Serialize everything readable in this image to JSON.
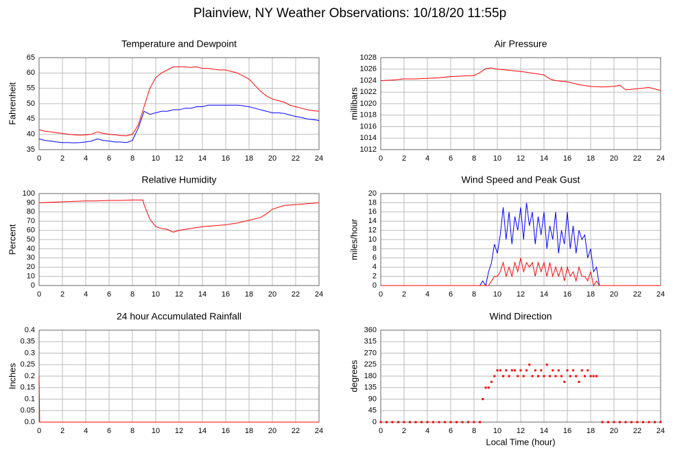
{
  "title": "Plainview, NY Weather Observations: 10/18/20 11:55p",
  "chart_data": [
    {
      "type": "line",
      "title": "Temperature and Dewpoint",
      "y_label": "Fahrenheit",
      "xlim": [
        0,
        24
      ],
      "xticks": [
        0,
        2,
        4,
        6,
        8,
        10,
        12,
        14,
        16,
        18,
        20,
        22,
        24
      ],
      "ylim": [
        35,
        65
      ],
      "yticks": [
        35,
        40,
        45,
        50,
        55,
        60,
        65
      ],
      "grid": true,
      "x": [
        0,
        0.5,
        1,
        1.5,
        2,
        2.5,
        3,
        3.5,
        4,
        4.5,
        5,
        5.5,
        6,
        6.5,
        7,
        7.5,
        8,
        8.5,
        9,
        9.5,
        10,
        10.5,
        11,
        11.5,
        12,
        12.5,
        13,
        13.5,
        14,
        14.5,
        15,
        15.5,
        16,
        16.5,
        17,
        17.5,
        18,
        18.5,
        19,
        19.5,
        20,
        20.5,
        21,
        21.5,
        22,
        22.5,
        23,
        23.5,
        24
      ],
      "series": [
        {
          "color": "#ff0000",
          "values": [
            41.5,
            41,
            40.8,
            40.5,
            40.3,
            40,
            39.8,
            39.7,
            39.8,
            40,
            40.8,
            40.3,
            40,
            39.8,
            39.6,
            39.5,
            40,
            43,
            49,
            55,
            58.5,
            60,
            61,
            62,
            62,
            62,
            61.8,
            62,
            61.5,
            61.5,
            61.2,
            61,
            61,
            60.5,
            60,
            59,
            58,
            56,
            54,
            52.5,
            51.5,
            51,
            50.5,
            49.5,
            49,
            48.5,
            48,
            47.7,
            47.5
          ]
        },
        {
          "color": "#0000ff",
          "values": [
            38.5,
            38,
            37.8,
            37.5,
            37.3,
            37.3,
            37.2,
            37.3,
            37.5,
            37.8,
            38.5,
            38,
            37.8,
            37.5,
            37.5,
            37.3,
            38,
            42,
            47.5,
            46.5,
            47,
            47.5,
            47.5,
            48,
            48,
            48.5,
            48.5,
            49,
            49,
            49.5,
            49.5,
            49.5,
            49.5,
            49.5,
            49.5,
            49.3,
            49,
            48.5,
            48,
            47.5,
            47,
            47,
            46.8,
            46.3,
            45.8,
            45.5,
            45,
            44.8,
            44.5
          ]
        }
      ]
    },
    {
      "type": "line",
      "title": "Air Pressure",
      "y_label": "millibars",
      "xlim": [
        0,
        24
      ],
      "xticks": [
        0,
        2,
        4,
        6,
        8,
        10,
        12,
        14,
        16,
        18,
        20,
        22,
        24
      ],
      "ylim": [
        1012,
        1028
      ],
      "yticks": [
        1012,
        1014,
        1016,
        1018,
        1020,
        1022,
        1024,
        1026,
        1028
      ],
      "grid": true,
      "x": [
        0,
        1,
        2,
        3,
        4,
        5,
        6,
        7,
        8,
        8.5,
        9,
        9.5,
        10,
        11,
        12,
        13,
        14,
        14.5,
        15,
        16,
        17,
        18,
        19,
        20,
        20.5,
        21,
        22,
        23,
        24
      ],
      "series": [
        {
          "color": "#ff0000",
          "values": [
            1024,
            1024.1,
            1024.3,
            1024.3,
            1024.4,
            1024.5,
            1024.7,
            1024.8,
            1024.9,
            1025.4,
            1026.1,
            1026.2,
            1026,
            1025.8,
            1025.6,
            1025.3,
            1025,
            1024.3,
            1024,
            1023.8,
            1023.3,
            1023,
            1022.9,
            1023,
            1023.2,
            1022.4,
            1022.6,
            1022.8,
            1022.3
          ]
        }
      ]
    },
    {
      "type": "line",
      "title": "Relative Humidity",
      "y_label": "Percent",
      "xlim": [
        0,
        24
      ],
      "xticks": [
        0,
        2,
        4,
        6,
        8,
        10,
        12,
        14,
        16,
        18,
        20,
        22,
        24
      ],
      "ylim": [
        0,
        100
      ],
      "yticks": [
        0,
        10,
        20,
        30,
        40,
        50,
        60,
        70,
        80,
        90,
        100
      ],
      "grid": true,
      "x": [
        0,
        1,
        2,
        3,
        4,
        5,
        6,
        7,
        8,
        8.9,
        9,
        9.5,
        10,
        10.5,
        11,
        11.5,
        12,
        13,
        14,
        15,
        16,
        17,
        18,
        19,
        19.5,
        20,
        21,
        22,
        23,
        24
      ],
      "series": [
        {
          "color": "#ff0000",
          "values": [
            90,
            90.5,
            91,
            91.5,
            92,
            92,
            92.5,
            92.5,
            93,
            93,
            88,
            72,
            64,
            62,
            61,
            58,
            60,
            62,
            64,
            65,
            66,
            68,
            71,
            74,
            78,
            83,
            87,
            88,
            89,
            90
          ]
        }
      ]
    },
    {
      "type": "line",
      "title": "Wind Speed and Peak Gust",
      "y_label": "miles/hour",
      "xlim": [
        0,
        24
      ],
      "xticks": [
        0,
        2,
        4,
        6,
        8,
        10,
        12,
        14,
        16,
        18,
        20,
        22,
        24
      ],
      "ylim": [
        0,
        20
      ],
      "yticks": [
        0,
        2,
        4,
        6,
        8,
        10,
        12,
        14,
        16,
        18,
        20
      ],
      "grid": true,
      "x": [
        0,
        8.5,
        8.75,
        9,
        9.25,
        9.5,
        9.75,
        10,
        10.25,
        10.5,
        10.75,
        11,
        11.25,
        11.5,
        11.75,
        12,
        12.25,
        12.5,
        12.75,
        13,
        13.25,
        13.5,
        13.75,
        14,
        14.25,
        14.5,
        14.75,
        15,
        15.25,
        15.5,
        15.75,
        16,
        16.25,
        16.5,
        16.75,
        17,
        17.25,
        17.5,
        17.75,
        18,
        18.25,
        18.5,
        18.75,
        24
      ],
      "series": [
        {
          "color": "#0000ff",
          "values": [
            0,
            0,
            1,
            0,
            3,
            5,
            9,
            7,
            11,
            17,
            10,
            16,
            9,
            15,
            12,
            17,
            10,
            18,
            13,
            16,
            9,
            15,
            11,
            16,
            8,
            13,
            10,
            16,
            7,
            12,
            9,
            16,
            8,
            13,
            7,
            12,
            10,
            11,
            6,
            8,
            3,
            4,
            0,
            0
          ]
        },
        {
          "color": "#ff0000",
          "values": [
            0,
            0,
            0,
            0,
            0,
            1,
            2,
            2,
            3,
            5,
            2,
            4,
            2,
            5,
            3,
            6,
            3,
            5,
            4,
            5,
            2,
            5,
            3,
            5,
            2,
            5,
            2,
            4,
            2,
            4,
            1,
            4,
            2,
            3,
            1,
            4,
            2,
            2,
            1,
            3,
            0,
            1,
            0,
            0
          ]
        }
      ]
    },
    {
      "type": "line",
      "title": "24 hour Accumulated Rainfall",
      "y_label": "Inches",
      "xlim": [
        0,
        24
      ],
      "xticks": [
        0,
        2,
        4,
        6,
        8,
        10,
        12,
        14,
        16,
        18,
        20,
        22,
        24
      ],
      "ylim": [
        0,
        0.4
      ],
      "yticks": [
        {
          "value": 0,
          "label": "0.0"
        },
        0.05,
        0.1,
        0.15,
        0.2,
        0.25,
        0.3,
        0.35,
        0.4
      ],
      "grid": true,
      "x": [
        0,
        0.05,
        24
      ],
      "series": [
        {
          "color": "#ff0000",
          "values": [
            0.2,
            0,
            0
          ]
        }
      ]
    },
    {
      "type": "scatter",
      "title": "Wind Direction",
      "y_label": "degrees",
      "x_label": "Local Time (hour)",
      "xlim": [
        0,
        24
      ],
      "xticks": [
        0,
        2,
        4,
        6,
        8,
        10,
        12,
        14,
        16,
        18,
        20,
        22,
        24
      ],
      "ylim": [
        0,
        360
      ],
      "yticks": [
        0,
        45,
        90,
        135,
        180,
        225,
        270,
        315,
        360
      ],
      "grid": true,
      "x": [
        0,
        0.5,
        1,
        1.5,
        2,
        2.5,
        3,
        3.5,
        4,
        4.5,
        5,
        5.5,
        6,
        6.5,
        7,
        7.5,
        8,
        8.5,
        8.75,
        9,
        9.25,
        9.5,
        9.75,
        10,
        10.25,
        10.5,
        10.75,
        11,
        11.25,
        11.5,
        11.75,
        12,
        12.25,
        12.5,
        12.75,
        13,
        13.25,
        13.5,
        13.75,
        14,
        14.25,
        14.5,
        14.75,
        15,
        15.25,
        15.5,
        15.75,
        16,
        16.25,
        16.5,
        16.75,
        17,
        17.25,
        17.5,
        17.75,
        18,
        18.25,
        18.5,
        19,
        19.5,
        20,
        20.5,
        21,
        21.5,
        22,
        22.5,
        23,
        23.5,
        24
      ],
      "series": [
        {
          "color": "#ff0000",
          "values": [
            0,
            0,
            0,
            0,
            0,
            0,
            0,
            0,
            0,
            0,
            0,
            0,
            0,
            0,
            0,
            0,
            0,
            0,
            90,
            135,
            135,
            157.5,
            180,
            202.5,
            202.5,
            180,
            202.5,
            180,
            202.5,
            202.5,
            180,
            202.5,
            180,
            202.5,
            225,
            180,
            202.5,
            180,
            202.5,
            180,
            225,
            180,
            202.5,
            180,
            202.5,
            180,
            157.5,
            202.5,
            180,
            202.5,
            180,
            157.5,
            202.5,
            180,
            202.5,
            180,
            180,
            180,
            0,
            0,
            0,
            0,
            0,
            0,
            0,
            0,
            0,
            0,
            0
          ]
        }
      ]
    }
  ]
}
